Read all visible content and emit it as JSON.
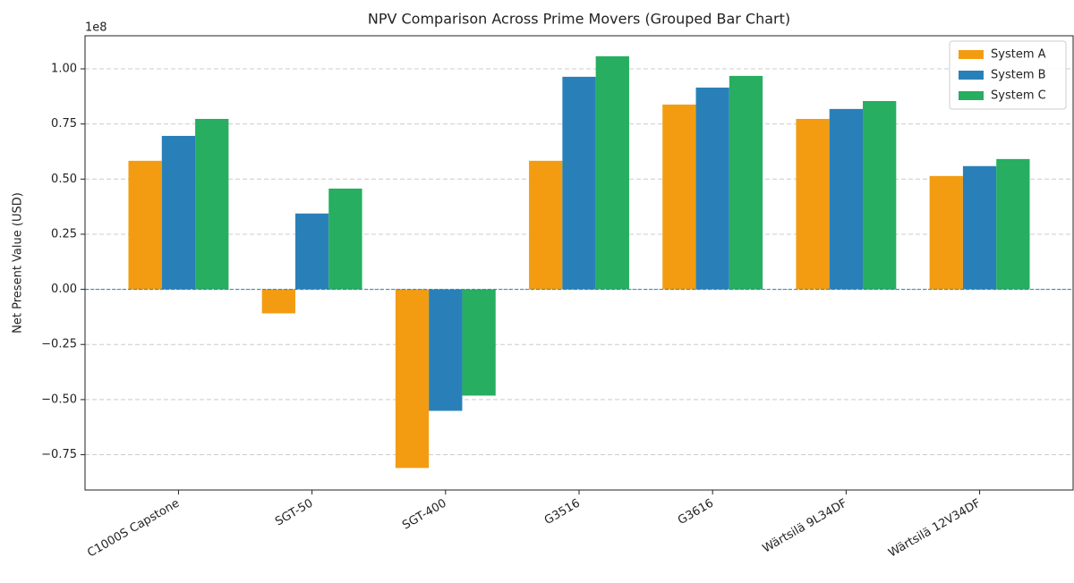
{
  "chart_data": {
    "type": "bar",
    "title": "NPV Comparison Across Prime Movers (Grouped Bar Chart)",
    "y_label": "Net Present Value (USD)",
    "y_offset_label": "1e8",
    "categories": [
      "C1000S Capstone",
      "SGT-50",
      "SGT-400",
      "G3516",
      "G3616",
      "Wärtsilä 9L34DF",
      "Wärtsilä 12V34DF"
    ],
    "series": [
      {
        "name": "System A",
        "color": "#f39c12",
        "values": [
          0.583,
          -0.109,
          -0.81,
          0.583,
          0.838,
          0.773,
          0.514
        ]
      },
      {
        "name": "System B",
        "color": "#2980b9",
        "values": [
          0.696,
          0.344,
          -0.551,
          0.964,
          0.915,
          0.818,
          0.559
        ]
      },
      {
        "name": "System C",
        "color": "#27ae60",
        "values": [
          0.773,
          0.457,
          -0.482,
          1.057,
          0.968,
          0.854,
          0.591
        ]
      }
    ],
    "ylim": [
      -0.91,
      1.15
    ],
    "yticks": [
      {
        "value": -0.75,
        "label": "−0.75"
      },
      {
        "value": -0.5,
        "label": "−0.50"
      },
      {
        "value": -0.25,
        "label": "−0.25"
      },
      {
        "value": 0,
        "label": "0.00"
      },
      0.25,
      {
        "value": 0.5,
        "label": "0.50"
      },
      0.75,
      {
        "value": 1,
        "label": "1.00"
      }
    ],
    "grid": true,
    "legend": "upper right"
  }
}
